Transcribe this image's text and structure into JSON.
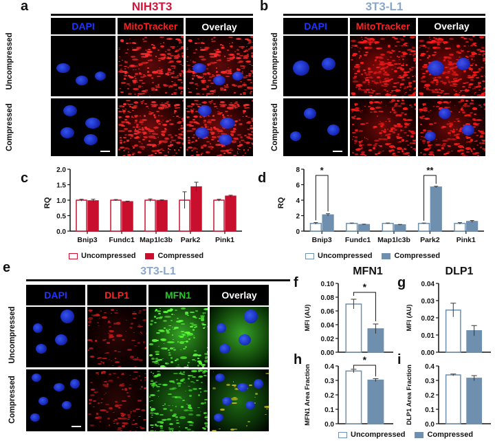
{
  "panel_a": {
    "letter": "a",
    "title": "NIH3T3",
    "title_color": "#d4143c",
    "headers": [
      {
        "label": "DAPI",
        "color": "#2234ff"
      },
      {
        "label": "MitoTracker",
        "color": "#ff2020"
      },
      {
        "label": "Overlay",
        "color": "#ffffff"
      }
    ],
    "rows": [
      "Uncompressed",
      "Compressed"
    ]
  },
  "panel_b": {
    "letter": "b",
    "title": "3T3-L1",
    "title_color": "#8aa6c8",
    "headers": [
      {
        "label": "DAPI",
        "color": "#2234ff"
      },
      {
        "label": "MitoTracker",
        "color": "#ff2020"
      },
      {
        "label": "Overlay",
        "color": "#ffffff"
      }
    ],
    "rows": [
      "Uncompressed",
      "Compressed"
    ]
  },
  "panel_e": {
    "letter": "e",
    "title": "3T3-L1",
    "title_color": "#8aa6c8",
    "headers": [
      {
        "label": "DAPI",
        "color": "#2234ff"
      },
      {
        "label": "DLP1",
        "color": "#ff2020"
      },
      {
        "label": "MFN1",
        "color": "#22cc22"
      },
      {
        "label": "Overlay",
        "color": "#ffffff"
      }
    ],
    "rows": [
      "Uncompressed",
      "Compressed"
    ]
  },
  "panel_f": {
    "letter": "f",
    "title": "MFN1"
  },
  "panel_g": {
    "letter": "g",
    "title": "DLP1"
  },
  "panel_h": {
    "letter": "h"
  },
  "panel_i": {
    "letter": "i"
  },
  "legend_red": {
    "uncompressed": "Uncompressed",
    "compressed": "Compressed",
    "color": "#c8102e"
  },
  "legend_blue": {
    "uncompressed": "Uncompressed",
    "compressed": "Compressed",
    "color": "#6e8fae"
  },
  "chart_data": [
    {
      "id": "c",
      "type": "bar",
      "letter": "c",
      "categories": [
        "Bnip3",
        "Fundc1",
        "Map1lc3b",
        "Park2",
        "Pink1"
      ],
      "ylabel": "RQ",
      "ylim": [
        0,
        2.0
      ],
      "yticks": [
        "0.0",
        "0.5",
        "1.0",
        "1.5",
        "2.0"
      ],
      "series": [
        {
          "name": "Uncompressed",
          "values": [
            1.0,
            1.0,
            1.0,
            1.0,
            1.0
          ],
          "errors": [
            0.03,
            0.02,
            0.04,
            0.27,
            0.03
          ]
        },
        {
          "name": "Compressed",
          "values": [
            0.98,
            0.95,
            0.99,
            1.43,
            1.13
          ],
          "errors": [
            0.05,
            0.02,
            0.02,
            0.15,
            0.03
          ]
        }
      ],
      "color": "#c8102e"
    },
    {
      "id": "d",
      "type": "bar",
      "letter": "d",
      "categories": [
        "Bnip3",
        "Fundc1",
        "Map1lc3b",
        "Park2",
        "Pink1"
      ],
      "ylabel": "RQ",
      "ylim": [
        0,
        8
      ],
      "yticks": [
        "0",
        "2",
        "4",
        "6",
        "8"
      ],
      "series": [
        {
          "name": "Uncompressed",
          "values": [
            1.0,
            1.0,
            1.0,
            1.0,
            1.0
          ],
          "errors": [
            0.1,
            0.05,
            0.05,
            0.05,
            0.1
          ]
        },
        {
          "name": "Compressed",
          "values": [
            2.1,
            0.85,
            0.82,
            5.7,
            1.25
          ],
          "errors": [
            0.15,
            0.05,
            0.05,
            0.1,
            0.12
          ]
        }
      ],
      "annotations": [
        {
          "category": "Bnip3",
          "text": "*",
          "level": 7.2
        },
        {
          "category": "Park2",
          "text": "**",
          "level": 7.2
        }
      ],
      "color": "#6e8fae"
    },
    {
      "id": "f",
      "type": "bar",
      "letter": "f",
      "categories": [
        "Uncompressed",
        "Compressed"
      ],
      "ylabel": "MFI (AU)",
      "ylim": [
        0,
        0.1
      ],
      "yticks": [
        "0.00",
        "0.02",
        "0.04",
        "0.06",
        "0.08",
        "0.10"
      ],
      "values": [
        0.07,
        0.034
      ],
      "errors": [
        0.007,
        0.007
      ],
      "annotation": {
        "text": "*",
        "level": 0.087
      },
      "color": "#6e8fae"
    },
    {
      "id": "g",
      "type": "bar",
      "letter": "g",
      "categories": [
        "Uncompressed",
        "Compressed"
      ],
      "ylabel": "MFI (AU)",
      "ylim": [
        0,
        0.04
      ],
      "yticks": [
        "0.00",
        "0.01",
        "0.02",
        "0.03",
        "0.04"
      ],
      "values": [
        0.0245,
        0.0125
      ],
      "errors": [
        0.004,
        0.003
      ],
      "color": "#6e8fae"
    },
    {
      "id": "h",
      "type": "bar",
      "letter": "h",
      "categories": [
        "Uncompressed",
        "Compressed"
      ],
      "ylabel": "MFN1 Area Fraction",
      "ylim": [
        0,
        0.4
      ],
      "yticks": [
        "0.0",
        "0.1",
        "0.2",
        "0.3",
        "0.4"
      ],
      "values": [
        0.365,
        0.302
      ],
      "errors": [
        0.012,
        0.01
      ],
      "annotation": {
        "text": "*",
        "level": 0.405
      },
      "color": "#6e8fae"
    },
    {
      "id": "i",
      "type": "bar",
      "letter": "i",
      "categories": [
        "Uncompressed",
        "Compressed"
      ],
      "ylabel": "DLP1 Area Fraction",
      "ylim": [
        0,
        0.4
      ],
      "yticks": [
        "0.0",
        "0.1",
        "0.2",
        "0.3",
        "0.4"
      ],
      "values": [
        0.338,
        0.315
      ],
      "errors": [
        0.006,
        0.018
      ],
      "color": "#6e8fae"
    }
  ]
}
